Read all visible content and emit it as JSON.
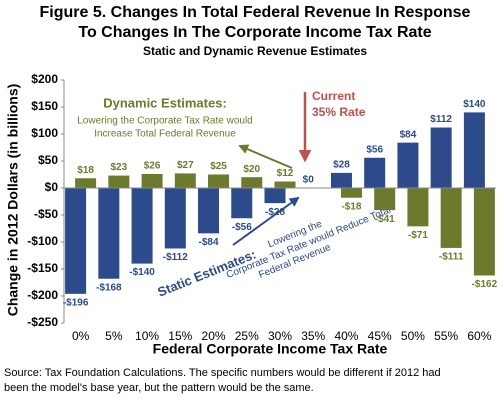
{
  "chart_data": {
    "type": "bar",
    "title": [
      "Figure 5. Changes In Total Federal Revenue In Response",
      "To Changes In The Corporate Income Tax Rate"
    ],
    "subtitle": "Static and Dynamic Revenue Estimates",
    "y_label": "Change in 2012 Dollars (in billions)",
    "x_label": "Federal Corporate Income Tax Rate",
    "categories": [
      "0%",
      "5%",
      "10%",
      "15%",
      "20%",
      "25%",
      "30%",
      "35%",
      "40%",
      "45%",
      "50%",
      "55%",
      "60%"
    ],
    "series": [
      {
        "name": "Dynamic Estimates",
        "color": "#6b7a2c",
        "values": [
          18,
          23,
          26,
          27,
          25,
          20,
          12,
          0,
          -18,
          -41,
          -71,
          -111,
          -162
        ],
        "value_labels": [
          "$18",
          "$23",
          "$26",
          "$27",
          "$25",
          "$20",
          "$12",
          null,
          "-$18",
          "-$41",
          "-$71",
          "-$111",
          "-$162"
        ]
      },
      {
        "name": "Static Estimates",
        "color": "#2c4a8c",
        "values": [
          -196,
          -168,
          -140,
          -112,
          -84,
          -56,
          -28,
          0,
          28,
          56,
          84,
          112,
          140
        ],
        "value_labels": [
          "-$196",
          "-$168",
          "-$140",
          "-$112",
          "-$84",
          "-$56",
          "-$28",
          "$0",
          "$28",
          "$56",
          "$84",
          "$112",
          "$140"
        ]
      }
    ],
    "ylim": [
      -250,
      200
    ],
    "yticks": [
      {
        "value": -250,
        "label": "-$250"
      },
      {
        "value": -200,
        "label": "-$200"
      },
      {
        "value": -150,
        "label": "-$150"
      },
      {
        "value": -100,
        "label": "-$100"
      },
      {
        "value": -50,
        "label": "-$50"
      },
      {
        "value": 0,
        "label": "$0"
      },
      {
        "value": 50,
        "label": "$50"
      },
      {
        "value": 100,
        "label": "$100"
      },
      {
        "value": 150,
        "label": "$150"
      },
      {
        "value": 200,
        "label": "$200"
      }
    ],
    "annotations": [
      {
        "title": "Dynamic Estimates:",
        "lines": [
          "Lowering the Corporate Tax Rate would",
          "Increase Total Federal Revenue"
        ]
      },
      {
        "title": "Static Estimates:",
        "lines": [
          "Lowering the",
          "Corporate Tax Rate would Reduce Total",
          "Federal Revenue"
        ]
      },
      {
        "lines": [
          "Current",
          "35% Rate"
        ]
      }
    ],
    "source": [
      "Source: Tax Foundation Calculations.  The specific numbers would be different if 2012 had",
      "been the model's base year, but the pattern would be the same."
    ]
  }
}
